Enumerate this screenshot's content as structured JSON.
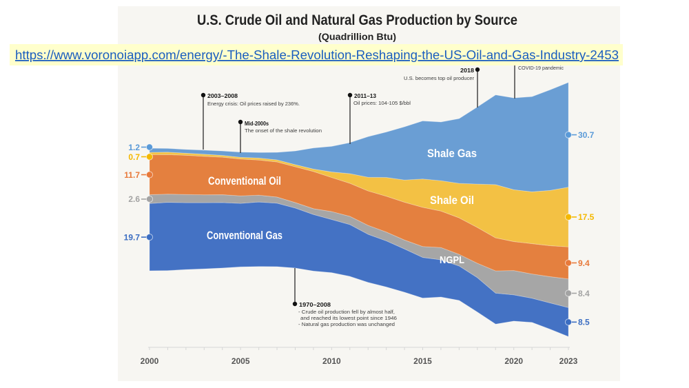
{
  "source_link": {
    "url_text": "https://www.voronoiapp.com/energy/-The-Shale-Revolution-Reshaping-the-US-Oil-and-Gas-Industry-2453",
    "highlight_color": "#ffffcc",
    "link_color": "#1a5dbf"
  },
  "chart_data": {
    "type": "area",
    "variant": "streamgraph (stacked areas around a centered baseline)",
    "title": "U.S. Crude Oil and Natural Gas Production by Source",
    "subtitle": "(Quadrillion Btu)",
    "units": "Quadrillion Btu",
    "xlabel": "",
    "ylabel": "",
    "grid": false,
    "legend": "inline labels inside areas",
    "x": [
      2000,
      2001,
      2002,
      2003,
      2004,
      2005,
      2006,
      2007,
      2008,
      2009,
      2010,
      2011,
      2012,
      2013,
      2014,
      2015,
      2016,
      2017,
      2018,
      2019,
      2020,
      2021,
      2022,
      2023
    ],
    "x_tick_years": [
      2000,
      2005,
      2010,
      2015,
      2020,
      2023
    ],
    "x_tick_labels": [
      "2000",
      "2005",
      "2010",
      "2015",
      "2020",
      "2023"
    ],
    "series": [
      {
        "key": "conventional-gas",
        "name": "Conventional Gas",
        "color": "#4472c4",
        "label_color": "#3b6dc2",
        "values": [
          19.7,
          20.0,
          19.6,
          19.4,
          19.2,
          18.6,
          18.9,
          18.6,
          17.6,
          16.6,
          15.6,
          15.2,
          14.1,
          13.5,
          12.7,
          11.9,
          10.9,
          10.1,
          10.1,
          9.1,
          7.7,
          7.1,
          7.7,
          8.5
        ]
      },
      {
        "key": "ngpl",
        "name": "NGPL",
        "color": "#a6a6a6",
        "label_color": "#a3a3a3",
        "values": [
          2.6,
          2.4,
          2.4,
          2.3,
          2.3,
          2.2,
          2.0,
          1.8,
          1.6,
          1.7,
          2.3,
          2.4,
          2.6,
          2.6,
          2.6,
          3.2,
          3.6,
          3.4,
          4.2,
          6.5,
          7.1,
          7.1,
          7.7,
          8.4
        ]
      },
      {
        "key": "conventional-oil",
        "name": "Conventional Oil",
        "color": "#e4803f",
        "label_color": "#e8793a",
        "values": [
          11.7,
          11.6,
          11.5,
          11.3,
          11.0,
          10.8,
          10.3,
          10.3,
          10.5,
          10.9,
          10.0,
          9.7,
          10.1,
          10.5,
          11.1,
          11.5,
          10.7,
          10.7,
          10.5,
          9.7,
          8.5,
          8.9,
          9.1,
          9.4
        ]
      },
      {
        "key": "shale-oil",
        "name": "Shale Oil",
        "color": "#f3c144",
        "label_color": "#f4b800",
        "values": [
          0.7,
          0.7,
          0.6,
          0.6,
          0.5,
          0.5,
          0.6,
          0.6,
          0.6,
          0.7,
          1.6,
          2.8,
          4.0,
          5.5,
          6.5,
          8.3,
          8.9,
          10.1,
          12.7,
          15.6,
          15.2,
          15.2,
          16.2,
          17.5
        ]
      },
      {
        "key": "shale-gas",
        "name": "Shale Gas",
        "color": "#6a9ed4",
        "label_color": "#5a9ad8",
        "values": [
          1.2,
          1.1,
          1.1,
          1.2,
          1.3,
          1.5,
          1.6,
          2.2,
          4.0,
          6.2,
          7.5,
          9.1,
          11.9,
          13.3,
          15.6,
          17.0,
          17.2,
          19.0,
          22.6,
          26.3,
          26.9,
          27.9,
          29.5,
          30.7
        ]
      }
    ],
    "annotations": [
      {
        "anchor_year": 2003,
        "label": "2003–2008",
        "lines": [
          "Energy crisis: Oil prices raised by 236%."
        ]
      },
      {
        "anchor_year": 2005,
        "label": "Mid-2000s",
        "lines": [
          "The onset of the shale revolution"
        ]
      },
      {
        "anchor_year": 2011,
        "label": "2011–13",
        "lines": [
          "Oil prices: 104-105 $/bbl"
        ]
      },
      {
        "anchor_year": 2018,
        "label": "2018",
        "lines": [
          "U.S. becomes top oil producer"
        ]
      },
      {
        "anchor_year": 2020,
        "label": "",
        "lines": [
          "COVID-19 pandemic"
        ]
      },
      {
        "anchor_year": 2008,
        "label": "1970–2008",
        "lines": [
          "- Crude oil production fell by almost half,",
          "and  reached its lowest point since 1946",
          "- Natural gas production was unchanged"
        ]
      }
    ]
  }
}
